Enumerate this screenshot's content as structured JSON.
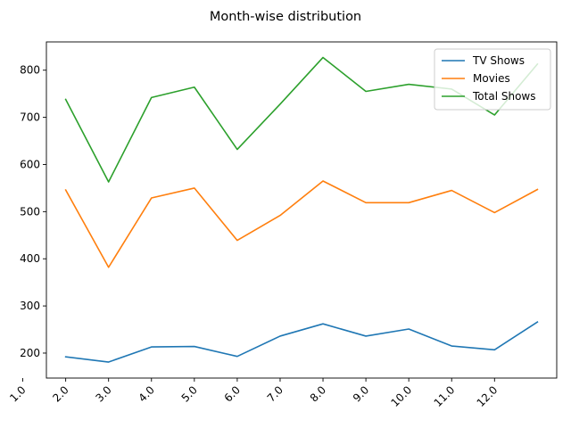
{
  "chart_data": {
    "type": "line",
    "title": "Month-wise distribution",
    "xlabel": "",
    "ylabel": "",
    "x_tick_labels": [
      "1.0",
      "2.0",
      "3.0",
      "4.0",
      "5.0",
      "6.0",
      "7.0",
      "8.0",
      "9.0",
      "10.0",
      "11.0",
      "12.0"
    ],
    "x": [
      1,
      2,
      3,
      4,
      5,
      6,
      7,
      8,
      9,
      10,
      11,
      12
    ],
    "xlim": [
      0.55,
      12.45
    ],
    "ylim": [
      147,
      860
    ],
    "y_ticks": [
      200,
      300,
      400,
      500,
      600,
      700,
      800
    ],
    "grid": false,
    "legend_position": "upper right",
    "series": [
      {
        "name": "TV Shows",
        "color": "#1f77b4",
        "values": [
          192,
          181,
          213,
          214,
          193,
          236,
          262,
          236,
          251,
          215,
          207,
          266
        ]
      },
      {
        "name": "Movies",
        "color": "#ff7f0e",
        "values": [
          546,
          382,
          529,
          550,
          439,
          492,
          565,
          519,
          519,
          545,
          498,
          547
        ]
      },
      {
        "name": "Total Shows",
        "color": "#2ca02c",
        "values": [
          738,
          563,
          742,
          764,
          632,
          728,
          827,
          755,
          770,
          760,
          705,
          813
        ]
      }
    ]
  }
}
